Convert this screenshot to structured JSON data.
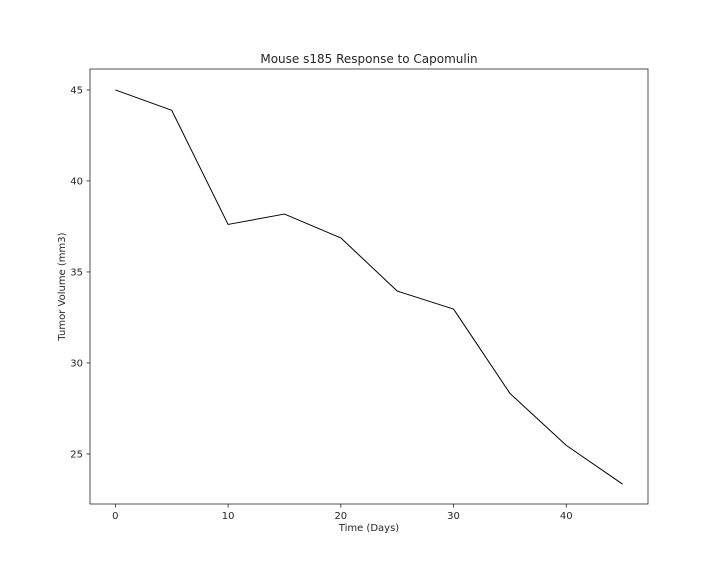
{
  "chart_data": {
    "type": "line",
    "title": "Mouse s185 Response to Capomulin",
    "xlabel": "Time (Days)",
    "ylabel": "Tumor Volume (mm3)",
    "xlim": [
      -2.25,
      47.25
    ],
    "ylim": [
      22.25,
      46.15
    ],
    "xticks": [
      0,
      10,
      20,
      30,
      40
    ],
    "yticks": [
      25,
      30,
      35,
      40,
      45
    ],
    "xtick_labels": [
      "0",
      "10",
      "20",
      "30",
      "40"
    ],
    "ytick_labels": [
      "25",
      "30",
      "35",
      "40",
      "45"
    ],
    "grid": false,
    "series": [
      {
        "color": "#000000",
        "x": [
          0,
          5,
          10,
          15,
          20,
          25,
          30,
          35,
          40,
          45
        ],
        "y": [
          45.0,
          43.88,
          37.61,
          38.18,
          36.87,
          33.95,
          32.96,
          28.33,
          25.47,
          23.34
        ]
      }
    ]
  }
}
